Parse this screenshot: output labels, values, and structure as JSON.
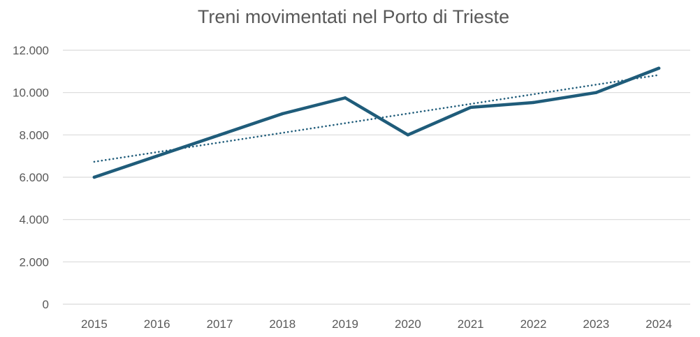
{
  "chart_data": {
    "type": "line",
    "title": "Treni movimentati nel Porto di Trieste",
    "xlabel": "",
    "ylabel": "",
    "categories": [
      "2015",
      "2016",
      "2017",
      "2018",
      "2019",
      "2020",
      "2021",
      "2022",
      "2023",
      "2024"
    ],
    "series": [
      {
        "values": [
          6000,
          7000,
          8000,
          9000,
          9750,
          8000,
          9300,
          9530,
          10000,
          11150
        ],
        "color": "#1f5c7a"
      }
    ],
    "trendline": {
      "kind": "linear",
      "start_value": 6730,
      "end_value": 10830,
      "color": "#1f5c7a",
      "style": "dotted"
    },
    "ylim": [
      0,
      12000
    ],
    "y_ticks": [
      {
        "value": 0,
        "label": "0"
      },
      {
        "value": 2000,
        "label": "2.000"
      },
      {
        "value": 4000,
        "label": "4.000"
      },
      {
        "value": 6000,
        "label": "6.000"
      },
      {
        "value": 8000,
        "label": "8.000"
      },
      {
        "value": 10000,
        "label": "10.000"
      },
      {
        "value": 12000,
        "label": "12.000"
      }
    ],
    "grid": true,
    "legend": "none"
  }
}
